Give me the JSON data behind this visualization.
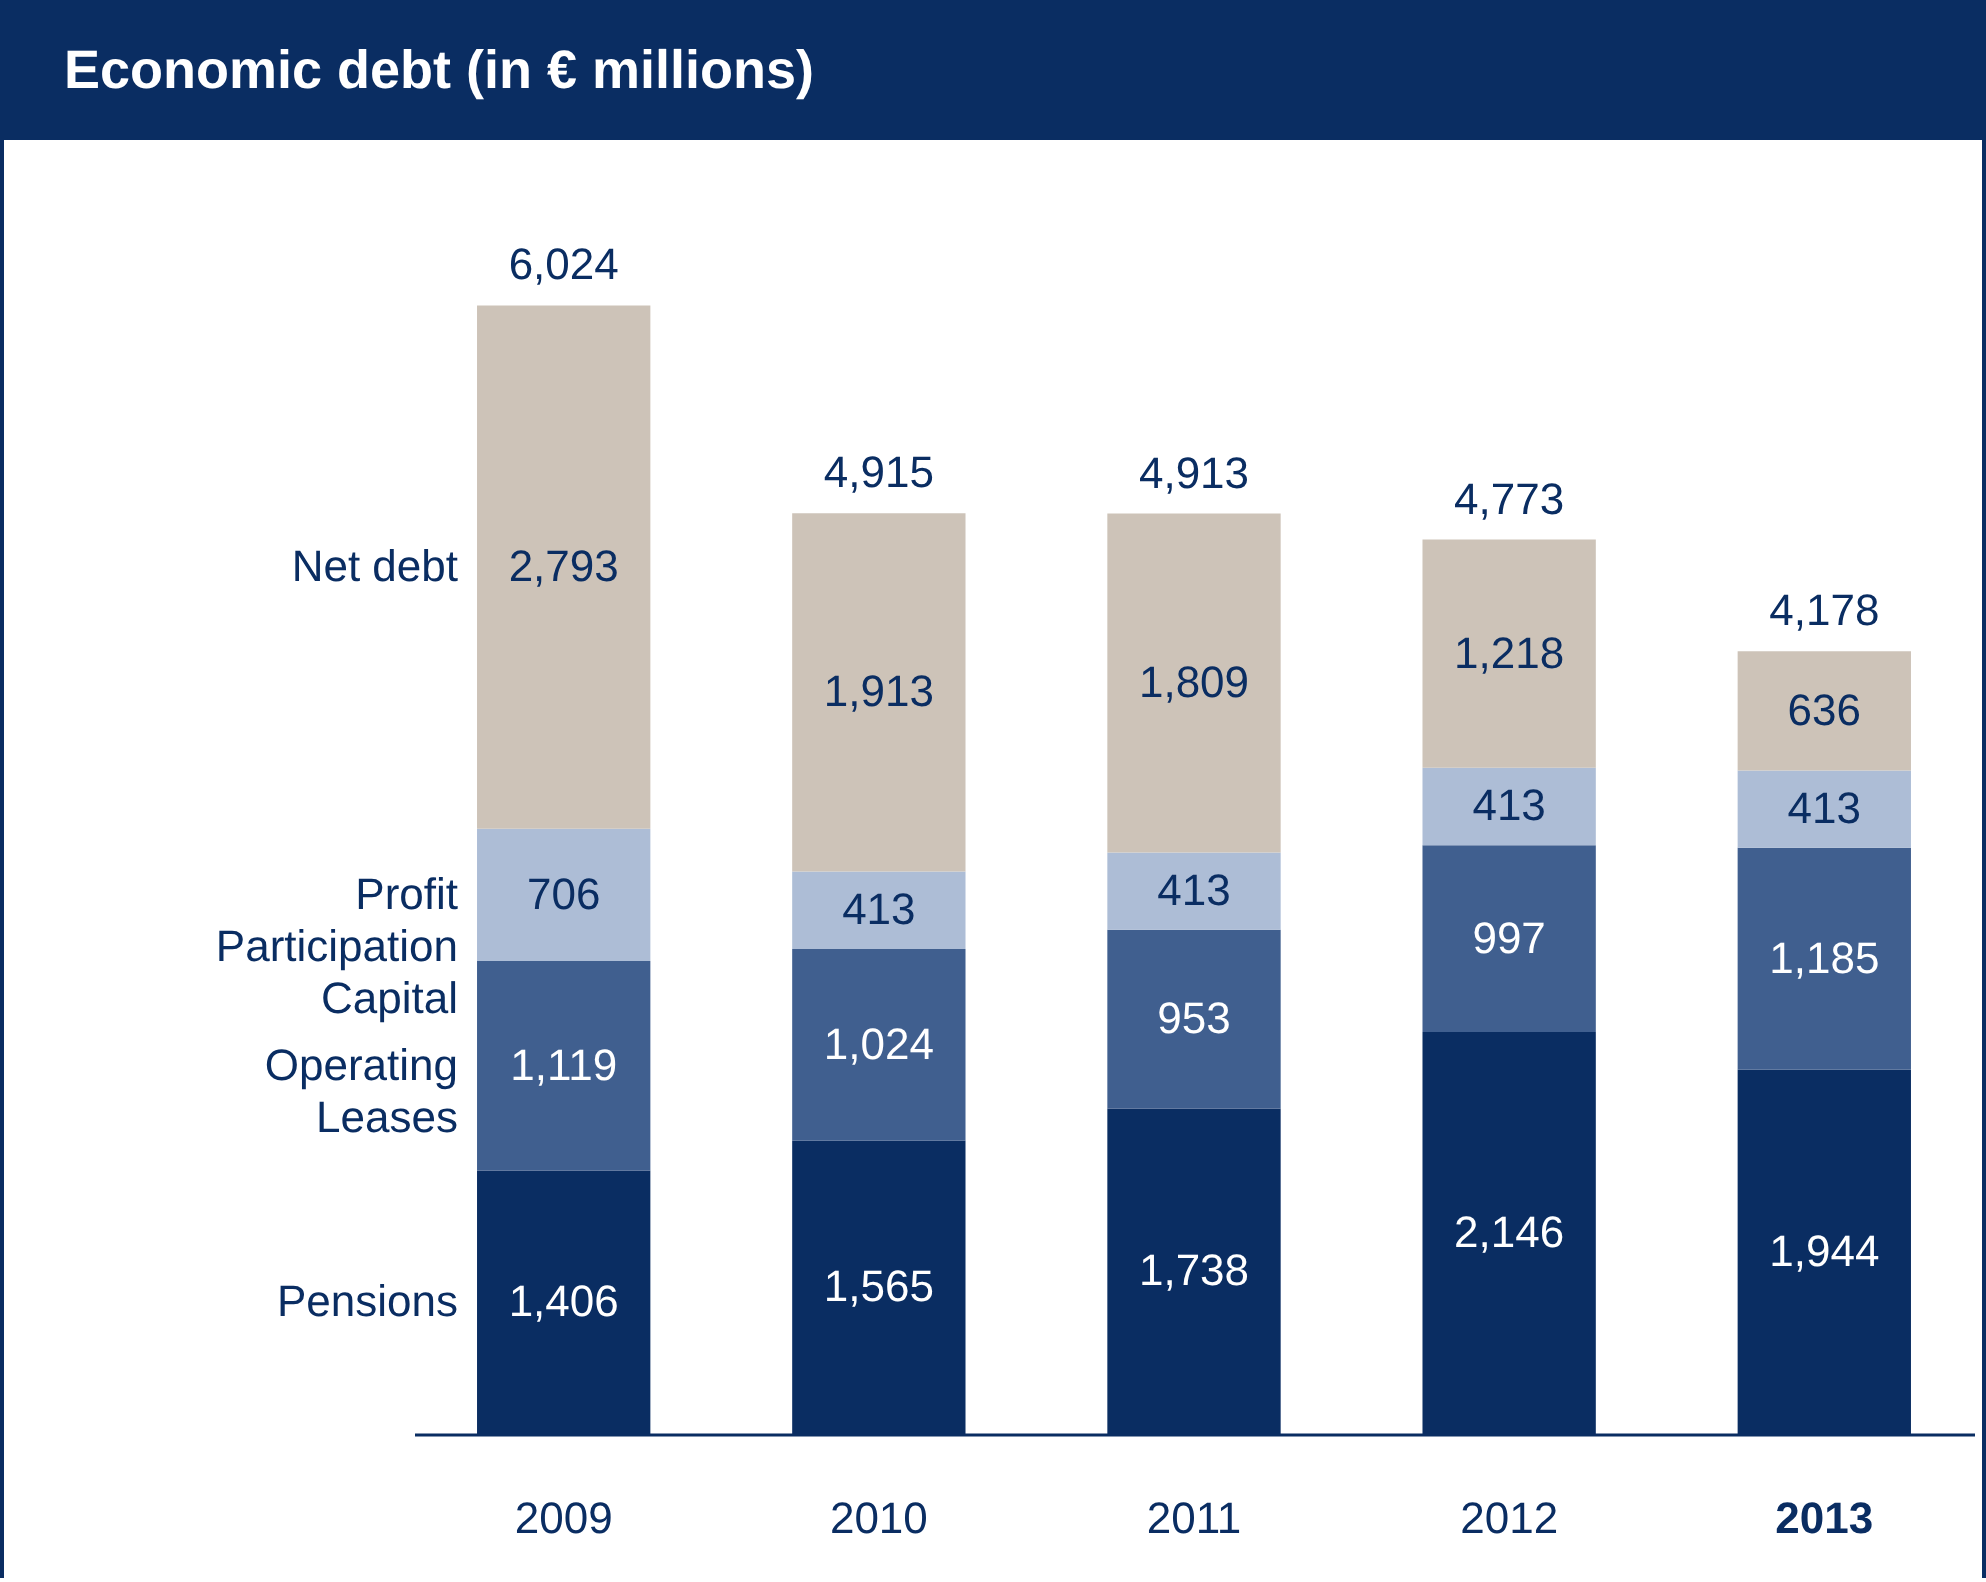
{
  "chart_data": {
    "type": "bar",
    "title": "Economic debt (in € millions)",
    "stacked": true,
    "legend": false,
    "grid": false,
    "categories": [
      "2009",
      "2010",
      "2011",
      "2012",
      "2013"
    ],
    "series": [
      {
        "name": "Pensions",
        "color": "#0a2d62",
        "values": [
          1406,
          1565,
          1738,
          2146,
          1944
        ],
        "value_labels": [
          "1,406",
          "1,565",
          "1,738",
          "2,146",
          "1,944"
        ]
      },
      {
        "name": "Operating Leases",
        "color": "#405f8f",
        "values": [
          1119,
          1024,
          953,
          997,
          1185
        ],
        "value_labels": [
          "1,119",
          "1,024",
          "953",
          "997",
          "1,185"
        ]
      },
      {
        "name": "Profit Participation Capital",
        "color": "#adbdd6",
        "values": [
          706,
          413,
          413,
          413,
          413
        ],
        "value_labels": [
          "706",
          "413",
          "413",
          "413",
          "413"
        ]
      },
      {
        "name": "Net debt",
        "color": "#cdc3b8",
        "values": [
          2793,
          1913,
          1809,
          1218,
          636
        ],
        "value_labels": [
          "2,793",
          "1,913",
          "1,809",
          "1,218",
          "636"
        ]
      }
    ],
    "totals": [
      "6,024",
      "4,915",
      "4,913",
      "4,773",
      "4,178"
    ]
  }
}
